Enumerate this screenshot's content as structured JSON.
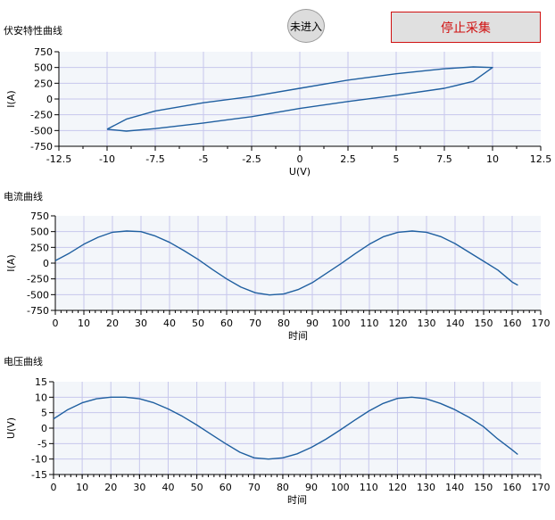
{
  "controls": {
    "status_label": "未进入",
    "stop_label": "停止采集"
  },
  "colors": {
    "series": "#1f5fa0",
    "plot_bg": "#f3f6fa",
    "grid": "#c7c7ec"
  },
  "charts": {
    "vi": {
      "title": "伏安特性曲线",
      "xlabel": "U(V)",
      "ylabel": "I(A)",
      "xticks": [
        "-12.5",
        "-10",
        "-7.5",
        "-5",
        "-2.5",
        "0",
        "2.5",
        "5",
        "7.5",
        "10",
        "12.5"
      ],
      "yticks": [
        "750",
        "500",
        "250",
        "0",
        "-250",
        "-500",
        "-750"
      ]
    },
    "current": {
      "title": "电流曲线",
      "xlabel": "时间",
      "ylabel": "I(A)",
      "xticks": [
        "0",
        "10",
        "20",
        "30",
        "40",
        "50",
        "60",
        "70",
        "80",
        "90",
        "100",
        "110",
        "120",
        "130",
        "140",
        "150",
        "160",
        "170"
      ],
      "yticks": [
        "750",
        "500",
        "250",
        "0",
        "-250",
        "-500",
        "-750"
      ]
    },
    "voltage": {
      "title": "电压曲线",
      "xlabel": "时间",
      "ylabel": "U(V)",
      "xticks": [
        "0",
        "10",
        "20",
        "30",
        "40",
        "50",
        "60",
        "70",
        "80",
        "90",
        "100",
        "110",
        "120",
        "130",
        "140",
        "150",
        "160",
        "170"
      ],
      "yticks": [
        "15",
        "10",
        "5",
        "0",
        "-5",
        "-10",
        "-15"
      ]
    }
  },
  "chart_data": [
    {
      "type": "line",
      "title": "伏安特性曲线",
      "xlabel": "U(V)",
      "ylabel": "I(A)",
      "xlim": [
        -12.5,
        12.5
      ],
      "ylim": [
        -750,
        750
      ],
      "grid": true,
      "series": [
        {
          "x": [
            -10,
            -9,
            -7.5,
            -5,
            -2.5,
            0,
            2.5,
            5,
            7.5,
            9,
            10,
            9,
            7.5,
            5,
            2.5,
            0,
            -2.5,
            -5,
            -7.5,
            -9,
            -10
          ],
          "y": [
            -480,
            -510,
            -470,
            -380,
            -280,
            -150,
            -40,
            60,
            170,
            280,
            500,
            510,
            480,
            400,
            300,
            170,
            40,
            -60,
            -190,
            -320,
            -480
          ]
        }
      ]
    },
    {
      "type": "line",
      "title": "电流曲线",
      "xlabel": "时间",
      "ylabel": "I(A)",
      "xlim": [
        0,
        170
      ],
      "ylim": [
        -750,
        750
      ],
      "grid": true,
      "series": [
        {
          "x": [
            0,
            5,
            10,
            15,
            20,
            25,
            30,
            35,
            40,
            45,
            50,
            55,
            60,
            65,
            70,
            75,
            80,
            85,
            90,
            95,
            100,
            105,
            110,
            115,
            120,
            125,
            130,
            135,
            140,
            145,
            150,
            155,
            160,
            162
          ],
          "y": [
            40,
            160,
            300,
            410,
            490,
            510,
            500,
            430,
            330,
            200,
            60,
            -100,
            -250,
            -380,
            -470,
            -505,
            -490,
            -420,
            -310,
            -160,
            -10,
            150,
            300,
            420,
            490,
            510,
            490,
            420,
            310,
            170,
            30,
            -110,
            -300,
            -350
          ]
        }
      ]
    },
    {
      "type": "line",
      "title": "电压曲线",
      "xlabel": "时间",
      "ylabel": "U(V)",
      "xlim": [
        0,
        170
      ],
      "ylim": [
        -15,
        15
      ],
      "grid": true,
      "series": [
        {
          "x": [
            0,
            5,
            10,
            15,
            20,
            25,
            30,
            35,
            40,
            45,
            50,
            55,
            60,
            65,
            70,
            75,
            80,
            85,
            90,
            95,
            100,
            105,
            110,
            115,
            120,
            125,
            130,
            135,
            140,
            145,
            150,
            155,
            160,
            162
          ],
          "y": [
            3,
            6,
            8.2,
            9.5,
            10,
            10,
            9.5,
            8.2,
            6.2,
            3.8,
            1,
            -2,
            -5,
            -7.8,
            -9.6,
            -10,
            -9.6,
            -8.3,
            -6.2,
            -3.6,
            -0.6,
            2.5,
            5.5,
            8,
            9.6,
            10,
            9.5,
            8,
            6,
            3.5,
            0.5,
            -3.5,
            -7,
            -8.5
          ]
        }
      ]
    }
  ]
}
